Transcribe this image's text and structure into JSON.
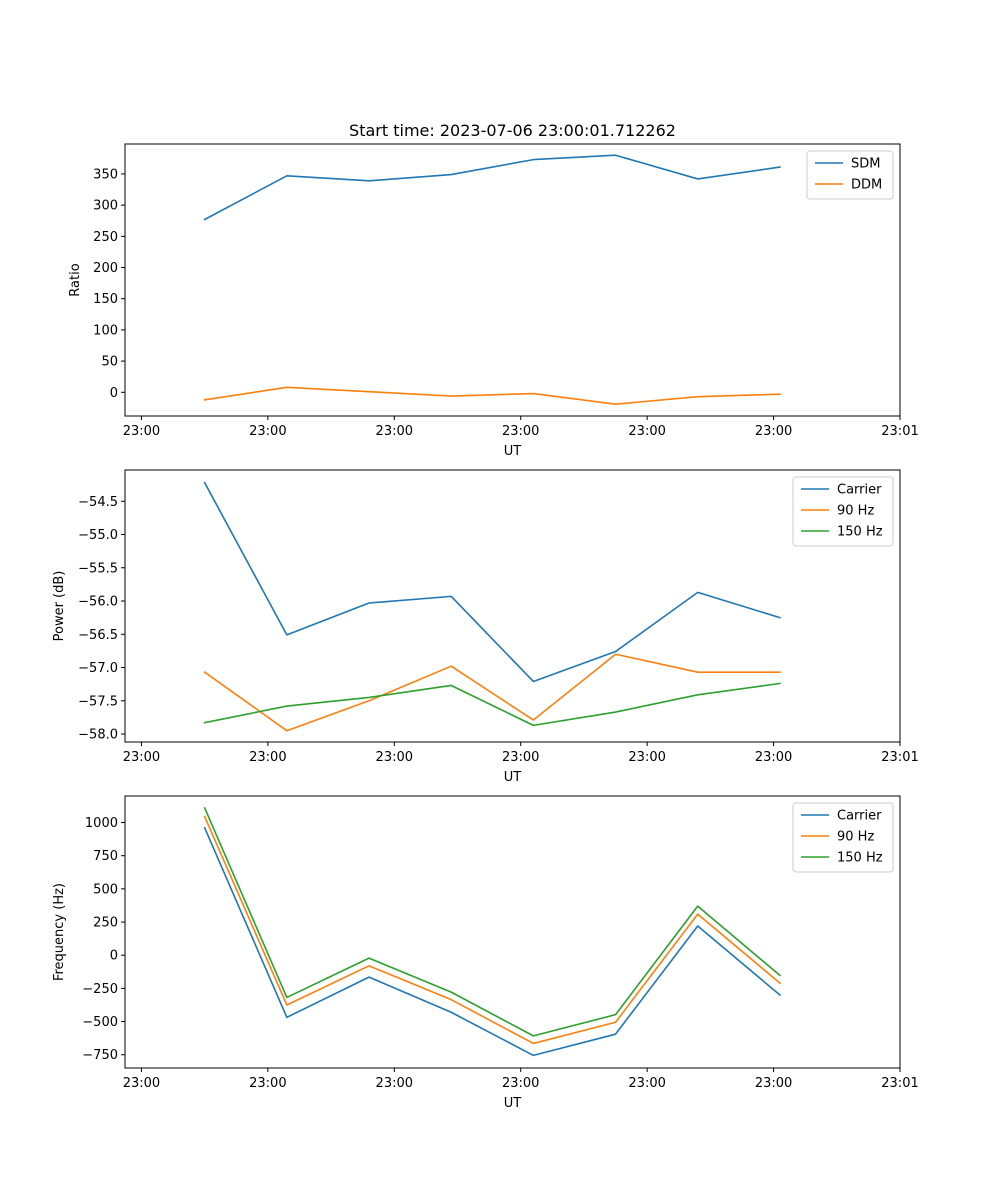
{
  "chart_data": [
    {
      "type": "line",
      "title": "Start time: 2023-07-06 23:00:01.712262",
      "xlabel": "UT",
      "ylabel": "Ratio",
      "x_tick_labels": [
        "23:00",
        "23:00",
        "23:00",
        "23:00",
        "23:00",
        "23:00",
        "23:01"
      ],
      "x_ticks": [
        0,
        1,
        2,
        3,
        4,
        5,
        6
      ],
      "xlim": [
        -0.13,
        6.0
      ],
      "x": [
        0.5,
        1.15,
        1.8,
        2.45,
        3.1,
        3.75,
        4.4,
        5.05
      ],
      "ylim": [
        -38,
        398
      ],
      "y_ticks": [
        0,
        50,
        100,
        150,
        200,
        250,
        300,
        350
      ],
      "y_tick_labels": [
        "0",
        "50",
        "100",
        "150",
        "200",
        "250",
        "300",
        "350"
      ],
      "legend_position": "top-right",
      "series": [
        {
          "name": "SDM",
          "color": "#1f77b4",
          "values": [
            277,
            347,
            339,
            349,
            373,
            380,
            342,
            361
          ]
        },
        {
          "name": "DDM",
          "color": "#ff7f0e",
          "values": [
            -12,
            8,
            1,
            -6,
            -2,
            -19,
            -7,
            -3
          ]
        }
      ]
    },
    {
      "type": "line",
      "title": "",
      "xlabel": "UT",
      "ylabel": "Power (dB)",
      "x_tick_labels": [
        "23:00",
        "23:00",
        "23:00",
        "23:00",
        "23:00",
        "23:00",
        "23:01"
      ],
      "x_ticks": [
        0,
        1,
        2,
        3,
        4,
        5,
        6
      ],
      "xlim": [
        -0.13,
        6.0
      ],
      "x": [
        0.5,
        1.15,
        1.8,
        2.45,
        3.1,
        3.75,
        4.4,
        5.05
      ],
      "ylim": [
        -58.12,
        -54.03
      ],
      "y_ticks": [
        -58.0,
        -57.5,
        -57.0,
        -56.5,
        -56.0,
        -55.5,
        -55.0,
        -54.5
      ],
      "y_tick_labels": [
        "−58.0",
        "−57.5",
        "−57.0",
        "−56.5",
        "−56.0",
        "−55.5",
        "−55.0",
        "−54.5"
      ],
      "legend_position": "top-right",
      "series": [
        {
          "name": "Carrier",
          "color": "#1f77b4",
          "values": [
            -54.22,
            -56.51,
            -56.03,
            -55.93,
            -57.21,
            -56.76,
            -55.87,
            -56.25
          ]
        },
        {
          "name": "90 Hz",
          "color": "#ff7f0e",
          "values": [
            -57.07,
            -57.95,
            -57.5,
            -56.98,
            -57.79,
            -56.8,
            -57.07,
            -57.07
          ]
        },
        {
          "name": "150 Hz",
          "color": "#2ca02c",
          "values": [
            -57.83,
            -57.58,
            -57.45,
            -57.27,
            -57.87,
            -57.67,
            -57.41,
            -57.24
          ]
        }
      ]
    },
    {
      "type": "line",
      "title": "",
      "xlabel": "UT",
      "ylabel": "Frequency (Hz)",
      "x_tick_labels": [
        "23:00",
        "23:00",
        "23:00",
        "23:00",
        "23:00",
        "23:00",
        "23:01"
      ],
      "x_ticks": [
        0,
        1,
        2,
        3,
        4,
        5,
        6
      ],
      "xlim": [
        -0.13,
        6.0
      ],
      "x": [
        0.5,
        1.15,
        1.8,
        2.45,
        3.1,
        3.75,
        4.4,
        5.05
      ],
      "ylim": [
        -850,
        1200
      ],
      "y_ticks": [
        -750,
        -500,
        -250,
        0,
        250,
        500,
        750,
        1000
      ],
      "y_tick_labels": [
        "−750",
        "−500",
        "−250",
        "0",
        "250",
        "500",
        "750",
        "1000"
      ],
      "legend_position": "top-right",
      "series": [
        {
          "name": "Carrier",
          "color": "#1f77b4",
          "values": [
            960,
            -468,
            -165,
            -430,
            -755,
            -595,
            220,
            -300
          ]
        },
        {
          "name": "90 Hz",
          "color": "#ff7f0e",
          "values": [
            1045,
            -375,
            -80,
            -335,
            -665,
            -505,
            310,
            -210
          ]
        },
        {
          "name": "150 Hz",
          "color": "#2ca02c",
          "values": [
            1110,
            -318,
            -22,
            -278,
            -608,
            -448,
            370,
            -152
          ]
        }
      ]
    }
  ]
}
